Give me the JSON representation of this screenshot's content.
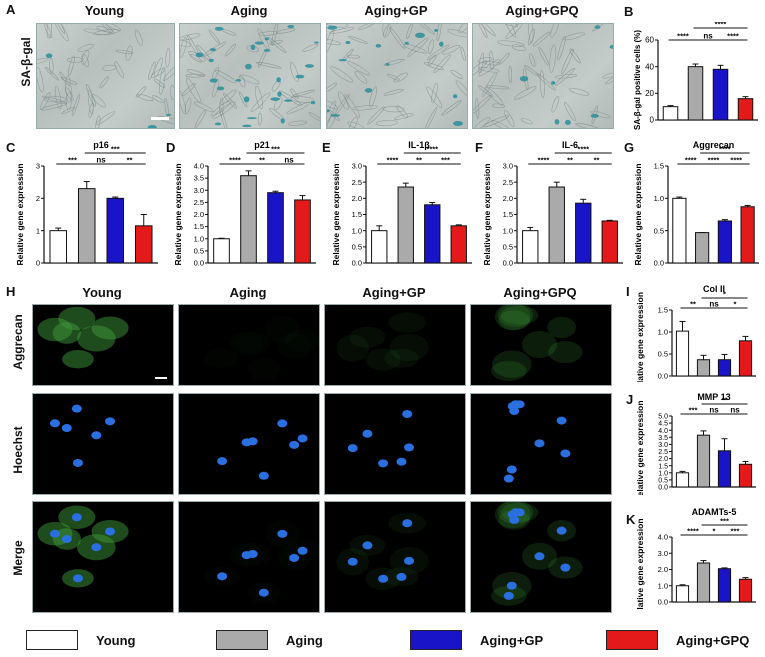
{
  "panels": {
    "A": "A",
    "B": "B",
    "C": "C",
    "D": "D",
    "E": "E",
    "F": "F",
    "G": "G",
    "H": "H",
    "I": "I",
    "J": "J",
    "K": "K"
  },
  "groups": [
    "Young",
    "Aging",
    "Aging+GP",
    "Aging+GPQ"
  ],
  "row_a_label": "SA-β-gal",
  "row_h_labels": [
    "Aggrecan",
    "Hoechst",
    "Merge"
  ],
  "colors": {
    "Young": "#ffffff",
    "Aging": "#aaaaaa",
    "Aging+GP": "#1a14c8",
    "Aging+GPQ": "#e41a1a",
    "sa_gal_stain": "#2a8d9a",
    "nucleus": "#2a6fe0",
    "aggrecan_fluor": "#3f9a3a"
  },
  "legend": [
    "Young",
    "Aging",
    "Aging+GP",
    "Aging+GPQ"
  ],
  "chart_data": [
    {
      "id": "B",
      "type": "bar",
      "title": "",
      "ylabel": "SA-β-gal positive cells (%)",
      "categories": [
        "Young",
        "Aging",
        "Aging+GP",
        "Aging+GPQ"
      ],
      "values": [
        10,
        40,
        38,
        16
      ],
      "errors": [
        0.8,
        2,
        3,
        1.5
      ],
      "ylim": [
        0,
        60
      ],
      "yticks": [
        "0",
        "20",
        "40",
        "60"
      ],
      "significance": [
        {
          "from": 0,
          "to": 1,
          "text": "****",
          "level": 1
        },
        {
          "from": 1,
          "to": 2,
          "text": "ns",
          "level": 1
        },
        {
          "from": 2,
          "to": 3,
          "text": "****",
          "level": 1
        },
        {
          "from": 1,
          "to": 3,
          "text": "****",
          "level": 2
        }
      ]
    },
    {
      "id": "C",
      "type": "bar",
      "title": "p16",
      "ylabel": "Relative gene expression",
      "categories": [
        "Young",
        "Aging",
        "Aging+GP",
        "Aging+GPQ"
      ],
      "values": [
        1.0,
        2.3,
        2.0,
        1.15
      ],
      "errors": [
        0.08,
        0.22,
        0.04,
        0.35
      ],
      "ylim": [
        0,
        3
      ],
      "yticks": [
        "0",
        "1",
        "2",
        "3"
      ],
      "significance": [
        {
          "from": 0,
          "to": 1,
          "text": "***",
          "level": 1
        },
        {
          "from": 1,
          "to": 2,
          "text": "ns",
          "level": 1
        },
        {
          "from": 2,
          "to": 3,
          "text": "**",
          "level": 1
        },
        {
          "from": 1,
          "to": 3,
          "text": "***",
          "level": 2
        }
      ]
    },
    {
      "id": "D",
      "type": "bar",
      "title": "p21",
      "ylabel": "Relative gene expression",
      "categories": [
        "Young",
        "Aging",
        "Aging+GP",
        "Aging+GPQ"
      ],
      "values": [
        1.0,
        3.6,
        2.9,
        2.6
      ],
      "errors": [
        0.02,
        0.2,
        0.06,
        0.18
      ],
      "ylim": [
        0,
        4
      ],
      "yticks": [
        "0.0",
        "0.5",
        "1.0",
        "1.5",
        "2.0",
        "2.5",
        "3.0",
        "3.5",
        "4.0"
      ],
      "significance": [
        {
          "from": 0,
          "to": 1,
          "text": "****",
          "level": 1
        },
        {
          "from": 1,
          "to": 2,
          "text": "**",
          "level": 1
        },
        {
          "from": 2,
          "to": 3,
          "text": "ns",
          "level": 1
        },
        {
          "from": 1,
          "to": 3,
          "text": "***",
          "level": 2
        }
      ]
    },
    {
      "id": "E",
      "type": "bar",
      "title": "IL-1β",
      "ylabel": "Relative gene expression",
      "categories": [
        "Young",
        "Aging",
        "Aging+GP",
        "Aging+GPQ"
      ],
      "values": [
        1.0,
        2.35,
        1.8,
        1.15
      ],
      "errors": [
        0.15,
        0.12,
        0.07,
        0.03
      ],
      "ylim": [
        0,
        3
      ],
      "yticks": [
        "0.0",
        "0.5",
        "1.0",
        "1.5",
        "2.0",
        "2.5",
        "3.0"
      ],
      "significance": [
        {
          "from": 0,
          "to": 1,
          "text": "****",
          "level": 1
        },
        {
          "from": 1,
          "to": 2,
          "text": "**",
          "level": 1
        },
        {
          "from": 2,
          "to": 3,
          "text": "***",
          "level": 1
        },
        {
          "from": 1,
          "to": 3,
          "text": "****",
          "level": 2
        }
      ]
    },
    {
      "id": "F",
      "type": "bar",
      "title": "IL-6",
      "ylabel": "Relative gene expression",
      "categories": [
        "Young",
        "Aging",
        "Aging+GP",
        "Aging+GPQ"
      ],
      "values": [
        1.0,
        2.35,
        1.85,
        1.3
      ],
      "errors": [
        0.1,
        0.15,
        0.12,
        0.02
      ],
      "ylim": [
        0,
        3
      ],
      "yticks": [
        "0.0",
        "0.5",
        "1.0",
        "1.5",
        "2.0",
        "2.5",
        "3.0"
      ],
      "significance": [
        {
          "from": 0,
          "to": 1,
          "text": "****",
          "level": 1
        },
        {
          "from": 1,
          "to": 2,
          "text": "**",
          "level": 1
        },
        {
          "from": 2,
          "to": 3,
          "text": "**",
          "level": 1
        },
        {
          "from": 1,
          "to": 3,
          "text": "****",
          "level": 2
        }
      ]
    },
    {
      "id": "G",
      "type": "bar",
      "title": "Aggrecan",
      "ylabel": "Relative gene expression",
      "categories": [
        "Young",
        "Aging",
        "Aging+GP",
        "Aging+GPQ"
      ],
      "values": [
        1.0,
        0.47,
        0.65,
        0.87
      ],
      "errors": [
        0.02,
        0.0,
        0.02,
        0.02
      ],
      "ylim": [
        0,
        1.5
      ],
      "yticks": [
        "0.0",
        "0.5",
        "1.0",
        "1.5"
      ],
      "significance": [
        {
          "from": 0,
          "to": 1,
          "text": "****",
          "level": 1
        },
        {
          "from": 1,
          "to": 2,
          "text": "****",
          "level": 1
        },
        {
          "from": 2,
          "to": 3,
          "text": "****",
          "level": 1
        },
        {
          "from": 1,
          "to": 3,
          "text": "****",
          "level": 2
        }
      ]
    },
    {
      "id": "I",
      "type": "bar",
      "title": "Col II",
      "ylabel": "Relative gene expression",
      "categories": [
        "Young",
        "Aging",
        "Aging+GP",
        "Aging+GPQ"
      ],
      "values": [
        1.02,
        0.37,
        0.37,
        0.8
      ],
      "errors": [
        0.22,
        0.1,
        0.12,
        0.1
      ],
      "ylim": [
        0,
        1.5
      ],
      "yticks": [
        "0.0",
        "0.5",
        "1.0",
        "1.5"
      ],
      "significance": [
        {
          "from": 0,
          "to": 1,
          "text": "**",
          "level": 1
        },
        {
          "from": 1,
          "to": 2,
          "text": "ns",
          "level": 1
        },
        {
          "from": 2,
          "to": 3,
          "text": "*",
          "level": 1
        },
        {
          "from": 1,
          "to": 3,
          "text": "*",
          "level": 2
        }
      ]
    },
    {
      "id": "J",
      "type": "bar",
      "title": "MMP 13",
      "ylabel": "Relative gene expression",
      "categories": [
        "Young",
        "Aging",
        "Aging+GP",
        "Aging+GPQ"
      ],
      "values": [
        1.0,
        3.65,
        2.55,
        1.6
      ],
      "errors": [
        0.1,
        0.3,
        0.85,
        0.2
      ],
      "ylim": [
        0,
        5
      ],
      "yticks": [
        "0.0",
        "0.5",
        "1.0",
        "1.5",
        "2.0",
        "2.5",
        "3.0",
        "3.5",
        "4.0",
        "4.5",
        "5.0"
      ],
      "significance": [
        {
          "from": 0,
          "to": 1,
          "text": "***",
          "level": 1
        },
        {
          "from": 1,
          "to": 2,
          "text": "ns",
          "level": 1
        },
        {
          "from": 2,
          "to": 3,
          "text": "ns",
          "level": 1
        },
        {
          "from": 1,
          "to": 3,
          "text": "**",
          "level": 2
        }
      ]
    },
    {
      "id": "K",
      "type": "bar",
      "title": "ADAMTs-5",
      "ylabel": "Relative gene expression",
      "categories": [
        "Young",
        "Aging",
        "Aging+GP",
        "Aging+GPQ"
      ],
      "values": [
        1.0,
        2.4,
        2.05,
        1.4
      ],
      "errors": [
        0.06,
        0.15,
        0.05,
        0.1
      ],
      "ylim": [
        0,
        4
      ],
      "yticks": [
        "0.0",
        "1.0",
        "2.0",
        "3.0",
        "4.0"
      ],
      "significance": [
        {
          "from": 0,
          "to": 1,
          "text": "****",
          "level": 1
        },
        {
          "from": 1,
          "to": 2,
          "text": "*",
          "level": 1
        },
        {
          "from": 2,
          "to": 3,
          "text": "***",
          "level": 1
        },
        {
          "from": 1,
          "to": 3,
          "text": "***",
          "level": 2
        }
      ]
    }
  ]
}
